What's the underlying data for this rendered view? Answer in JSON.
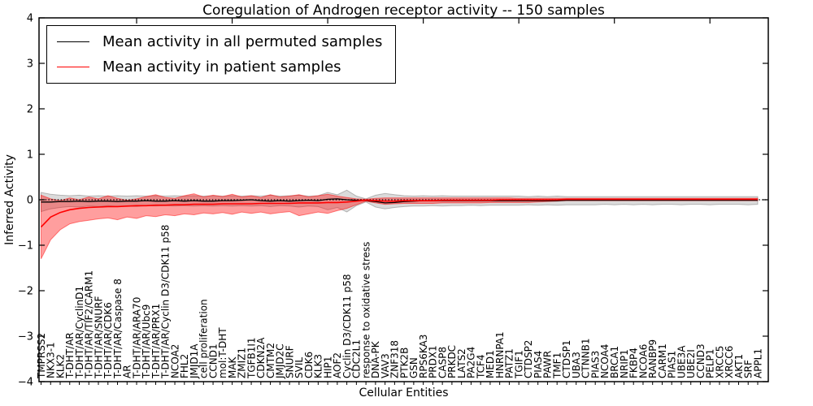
{
  "chart_data": {
    "type": "line",
    "title": "Coregulation of Androgen receptor activity -- 150 samples",
    "xlabel": "Cellular Entities",
    "ylabel": "Inferred Activity",
    "ylim": [
      -4,
      4
    ],
    "yticks": [
      4,
      3,
      2,
      1,
      0,
      -1,
      -2,
      -3,
      -4
    ],
    "ytick_labels": [
      "4",
      "3",
      "2",
      "1",
      "0",
      "−1",
      "−2",
      "−3",
      "−4"
    ],
    "grid": false,
    "legend_position": "upper left",
    "zero_line": {
      "y": 0,
      "style": "dotted",
      "color": "#000000"
    },
    "categories": [
      "TMPRSS2",
      "NKX3-1",
      "KLK2",
      "T-DHT/AR",
      "T-DHT/AR/CyclinD1",
      "T-DHT/AR/TIF2/CARM1",
      "T-DHT/AR/SNURF",
      "T-DHT/AR/CDK6",
      "T-DHT/AR/Caspase 8",
      "AR",
      "T-DHT/AR/ARA70",
      "T-DHT/AR/Ubc9",
      "T-DHT/AR/PRX1",
      "T-DHT/AR/Cyclin D3/CDK11 p58",
      "NCOA2",
      "FHL2",
      "JMJD1A",
      "cell proliferation",
      "CCND1",
      "mol:T-DHT",
      "MAK",
      "ZMIZ1",
      "TGFB1I1",
      "CDKN2A",
      "CMTM2",
      "JMJD2C",
      "SNURF",
      "SVIL",
      "CDK6",
      "KLK3",
      "HIP1",
      "AOF2",
      "Cyclin D3/CDK11 p58",
      "CDC2L1",
      "response to oxidative stress",
      "DNA-PK",
      "VAV3",
      "ZNF318",
      "PTK2B",
      "GSN",
      "RPS6KA3",
      "PRDX1",
      "CASP8",
      "PRKDC",
      "LATS2",
      "PA2G4",
      "TCF4",
      "MED1",
      "HNRNPA1",
      "PATZ1",
      "TGIF1",
      "CTDSP2",
      "PIAS4",
      "PAWR",
      "TMF1",
      "CTDSP1",
      "UBA3",
      "CTNNB1",
      "PIAS3",
      "NCOA4",
      "BRCA1",
      "NRIP1",
      "FKBP4",
      "NCOA6",
      "RANBP9",
      "CARM1",
      "PIAS1",
      "UBE3A",
      "UBE2I",
      "CCND3",
      "PELP1",
      "XRCC5",
      "XRCC6",
      "AKT1",
      "SRF",
      "APPL1"
    ],
    "series": [
      {
        "name": "Mean activity in all permuted samples",
        "color": "#000000",
        "values": [
          -0.05,
          -0.05,
          -0.04,
          -0.04,
          -0.03,
          -0.04,
          -0.03,
          -0.03,
          -0.04,
          -0.03,
          -0.03,
          -0.02,
          -0.03,
          -0.03,
          -0.02,
          -0.03,
          -0.02,
          -0.03,
          -0.03,
          -0.02,
          -0.02,
          -0.01,
          0.0,
          -0.02,
          -0.03,
          -0.02,
          -0.03,
          -0.02,
          -0.01,
          -0.02,
          0.01,
          0.02,
          0.0,
          -0.01,
          -0.02,
          -0.04,
          -0.07,
          -0.06,
          -0.04,
          -0.03,
          -0.02,
          -0.02,
          -0.02,
          -0.02,
          -0.02,
          -0.02,
          -0.02,
          -0.02,
          -0.02,
          -0.02,
          -0.02,
          -0.02,
          -0.02,
          -0.02,
          -0.02,
          -0.01,
          -0.01,
          -0.01,
          -0.01,
          -0.01,
          -0.01,
          -0.01,
          -0.01,
          -0.01,
          -0.01,
          -0.01,
          -0.01,
          -0.01,
          -0.01,
          -0.01,
          -0.01,
          -0.01,
          -0.01,
          -0.01,
          -0.01,
          -0.01
        ],
        "band": {
          "fill": "#000000",
          "fill_opacity": 0.14,
          "lower": [
            -0.26,
            -0.2,
            -0.17,
            -0.15,
            -0.16,
            -0.14,
            -0.15,
            -0.13,
            -0.15,
            -0.14,
            -0.15,
            -0.13,
            -0.14,
            -0.13,
            -0.14,
            -0.13,
            -0.14,
            -0.13,
            -0.14,
            -0.13,
            -0.14,
            -0.13,
            -0.14,
            -0.13,
            -0.15,
            -0.13,
            -0.14,
            -0.16,
            -0.14,
            -0.15,
            -0.22,
            -0.17,
            -0.27,
            -0.13,
            -0.05,
            -0.16,
            -0.2,
            -0.17,
            -0.15,
            -0.14,
            -0.14,
            -0.13,
            -0.14,
            -0.13,
            -0.13,
            -0.12,
            -0.13,
            -0.12,
            -0.12,
            -0.12,
            -0.12,
            -0.11,
            -0.12,
            -0.11,
            -0.12,
            -0.11,
            -0.11,
            -0.11,
            -0.11,
            -0.1,
            -0.11,
            -0.1,
            -0.11,
            -0.1,
            -0.11,
            -0.1,
            -0.1,
            -0.11,
            -0.1,
            -0.1,
            -0.11,
            -0.1,
            -0.1,
            -0.1,
            -0.11,
            -0.1
          ],
          "upper": [
            0.16,
            0.12,
            0.1,
            0.09,
            0.1,
            0.08,
            0.09,
            0.08,
            0.09,
            0.08,
            0.09,
            0.08,
            0.09,
            0.08,
            0.09,
            0.08,
            0.09,
            0.08,
            0.09,
            0.08,
            0.09,
            0.08,
            0.09,
            0.08,
            0.1,
            0.08,
            0.09,
            0.1,
            0.08,
            0.09,
            0.16,
            0.11,
            0.21,
            0.08,
            0.02,
            0.1,
            0.14,
            0.11,
            0.09,
            0.08,
            0.09,
            0.08,
            0.09,
            0.08,
            0.08,
            0.08,
            0.08,
            0.08,
            0.08,
            0.08,
            0.08,
            0.07,
            0.08,
            0.07,
            0.08,
            0.07,
            0.07,
            0.07,
            0.07,
            0.07,
            0.07,
            0.07,
            0.07,
            0.07,
            0.07,
            0.07,
            0.07,
            0.07,
            0.07,
            0.07,
            0.07,
            0.07,
            0.07,
            0.07,
            0.07,
            0.07
          ]
        }
      },
      {
        "name": "Mean activity in patient samples",
        "color": "#ff0000",
        "values": [
          -0.6,
          -0.38,
          -0.28,
          -0.22,
          -0.19,
          -0.17,
          -0.16,
          -0.15,
          -0.15,
          -0.14,
          -0.13,
          -0.13,
          -0.12,
          -0.12,
          -0.11,
          -0.11,
          -0.1,
          -0.1,
          -0.1,
          -0.09,
          -0.09,
          -0.09,
          -0.09,
          -0.08,
          -0.08,
          -0.08,
          -0.08,
          -0.07,
          -0.07,
          -0.07,
          -0.06,
          -0.06,
          -0.05,
          -0.03,
          -0.01,
          -0.02,
          -0.03,
          -0.03,
          -0.02,
          -0.02,
          -0.02,
          -0.02,
          -0.01,
          -0.01,
          -0.01,
          -0.01,
          -0.01,
          -0.01,
          0.0,
          0.0,
          0.0,
          0.0,
          0.0,
          0.0,
          0.0,
          0.01,
          0.01,
          0.01,
          0.01,
          0.01,
          0.01,
          0.01,
          0.01,
          0.01,
          0.01,
          0.01,
          0.01,
          0.01,
          0.01,
          0.01,
          0.01,
          0.01,
          0.01,
          0.01,
          0.01,
          0.01
        ],
        "band": {
          "fill": "#ff0000",
          "fill_opacity": 0.38,
          "lower": [
            -1.3,
            -0.88,
            -0.66,
            -0.53,
            -0.48,
            -0.45,
            -0.42,
            -0.4,
            -0.44,
            -0.38,
            -0.41,
            -0.35,
            -0.37,
            -0.33,
            -0.35,
            -0.31,
            -0.33,
            -0.29,
            -0.31,
            -0.28,
            -0.32,
            -0.27,
            -0.3,
            -0.27,
            -0.31,
            -0.28,
            -0.26,
            -0.35,
            -0.31,
            -0.27,
            -0.3,
            -0.24,
            -0.19,
            -0.11,
            -0.03,
            -0.07,
            -0.1,
            -0.09,
            -0.08,
            -0.08,
            -0.08,
            -0.08,
            -0.07,
            -0.07,
            -0.07,
            -0.07,
            -0.07,
            -0.06,
            -0.06,
            -0.06,
            -0.06,
            -0.06,
            -0.05,
            -0.04,
            -0.03,
            -0.02,
            -0.02,
            -0.02,
            -0.02,
            -0.02,
            -0.02,
            -0.02,
            -0.02,
            -0.02,
            -0.02,
            -0.02,
            -0.02,
            -0.02,
            -0.02,
            -0.02,
            -0.02,
            -0.02,
            -0.02,
            -0.02,
            -0.02,
            -0.02
          ],
          "upper": [
            0.1,
            0.02,
            -0.02,
            0.04,
            0.0,
            0.06,
            0.02,
            0.09,
            0.03,
            -0.01,
            0.02,
            0.07,
            0.11,
            0.05,
            0.03,
            0.09,
            0.13,
            0.06,
            0.1,
            0.07,
            0.12,
            0.06,
            0.09,
            0.05,
            0.11,
            0.06,
            0.08,
            0.11,
            0.06,
            0.09,
            0.12,
            0.08,
            0.05,
            0.02,
            0.01,
            0.03,
            0.04,
            0.04,
            0.04,
            0.04,
            0.04,
            0.04,
            0.04,
            0.04,
            0.04,
            0.04,
            0.04,
            0.04,
            0.04,
            0.04,
            0.03,
            0.03,
            0.03,
            0.03,
            0.03,
            0.03,
            0.03,
            0.03,
            0.03,
            0.03,
            0.03,
            0.03,
            0.03,
            0.03,
            0.03,
            0.03,
            0.03,
            0.03,
            0.03,
            0.03,
            0.03,
            0.03,
            0.03,
            0.03,
            0.03,
            0.03
          ]
        }
      }
    ]
  }
}
